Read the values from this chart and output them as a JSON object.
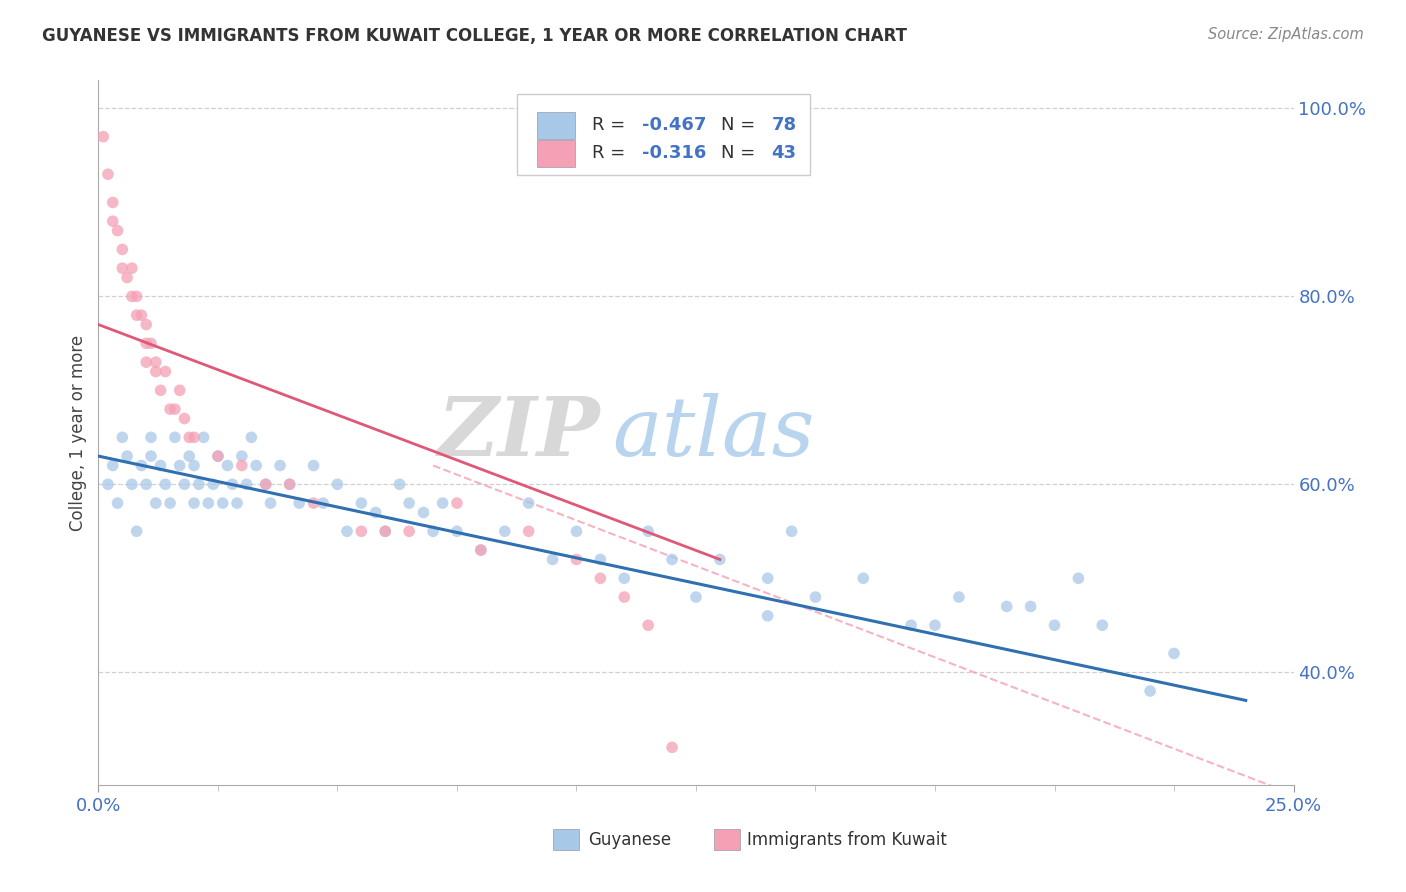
{
  "title": "GUYANESE VS IMMIGRANTS FROM KUWAIT COLLEGE, 1 YEAR OR MORE CORRELATION CHART",
  "source_text": "Source: ZipAtlas.com",
  "ylabel": "College, 1 year or more",
  "xmin": 0.0,
  "xmax": 25.0,
  "ymin": 28.0,
  "ymax": 103.0,
  "blue_color": "#a8c8e8",
  "pink_color": "#f4a0b5",
  "blue_line_color": "#3070b0",
  "pink_line_color": "#e05878",
  "dashed_line_color": "#f4a0b5",
  "watermark_zip": "ZIP",
  "watermark_atlas": "atlas",
  "background_color": "#ffffff",
  "grid_color": "#d0d0d0",
  "blue_x": [
    0.2,
    0.3,
    0.4,
    0.5,
    0.6,
    0.7,
    0.8,
    0.9,
    1.0,
    1.1,
    1.1,
    1.2,
    1.3,
    1.4,
    1.5,
    1.6,
    1.7,
    1.8,
    1.9,
    2.0,
    2.0,
    2.1,
    2.2,
    2.3,
    2.4,
    2.5,
    2.6,
    2.7,
    2.8,
    2.9,
    3.0,
    3.1,
    3.2,
    3.3,
    3.5,
    3.6,
    3.8,
    4.0,
    4.2,
    4.5,
    4.7,
    5.0,
    5.2,
    5.5,
    5.8,
    6.0,
    6.3,
    6.5,
    6.8,
    7.0,
    7.2,
    7.5,
    8.0,
    8.5,
    9.0,
    9.5,
    10.0,
    10.5,
    11.0,
    11.5,
    12.0,
    12.5,
    13.0,
    14.0,
    14.5,
    15.0,
    16.0,
    17.0,
    18.0,
    19.0,
    20.0,
    21.0,
    22.0,
    22.5,
    14.0,
    17.5,
    19.5,
    20.5
  ],
  "blue_y": [
    60,
    62,
    58,
    65,
    63,
    60,
    55,
    62,
    60,
    63,
    65,
    58,
    62,
    60,
    58,
    65,
    62,
    60,
    63,
    58,
    62,
    60,
    65,
    58,
    60,
    63,
    58,
    62,
    60,
    58,
    63,
    60,
    65,
    62,
    60,
    58,
    62,
    60,
    58,
    62,
    58,
    60,
    55,
    58,
    57,
    55,
    60,
    58,
    57,
    55,
    58,
    55,
    53,
    55,
    58,
    52,
    55,
    52,
    50,
    55,
    52,
    48,
    52,
    50,
    55,
    48,
    50,
    45,
    48,
    47,
    45,
    45,
    38,
    42,
    46,
    45,
    47,
    50
  ],
  "pink_x": [
    0.1,
    0.2,
    0.3,
    0.3,
    0.4,
    0.5,
    0.5,
    0.6,
    0.7,
    0.7,
    0.8,
    0.8,
    0.9,
    1.0,
    1.0,
    1.0,
    1.1,
    1.2,
    1.2,
    1.3,
    1.4,
    1.5,
    1.6,
    1.7,
    1.8,
    1.9,
    2.0,
    2.5,
    3.0,
    3.5,
    4.5,
    5.5,
    6.5,
    8.0,
    10.0,
    11.0,
    11.5,
    4.0,
    6.0,
    7.5,
    9.0,
    10.5,
    12.0
  ],
  "pink_y": [
    97,
    93,
    90,
    88,
    87,
    85,
    83,
    82,
    80,
    83,
    78,
    80,
    78,
    75,
    73,
    77,
    75,
    73,
    72,
    70,
    72,
    68,
    68,
    70,
    67,
    65,
    65,
    63,
    62,
    60,
    58,
    55,
    55,
    53,
    52,
    48,
    45,
    60,
    55,
    58,
    55,
    50,
    32
  ],
  "blue_line_x0": 0.0,
  "blue_line_y0": 63.0,
  "blue_line_x1": 24.0,
  "blue_line_y1": 37.0,
  "pink_line_x0": 0.0,
  "pink_line_y0": 77.0,
  "pink_line_x1": 13.0,
  "pink_line_y1": 52.0,
  "dashed_x0": 7.0,
  "dashed_y0": 62.0,
  "dashed_x1": 25.0,
  "dashed_y1": 27.0
}
